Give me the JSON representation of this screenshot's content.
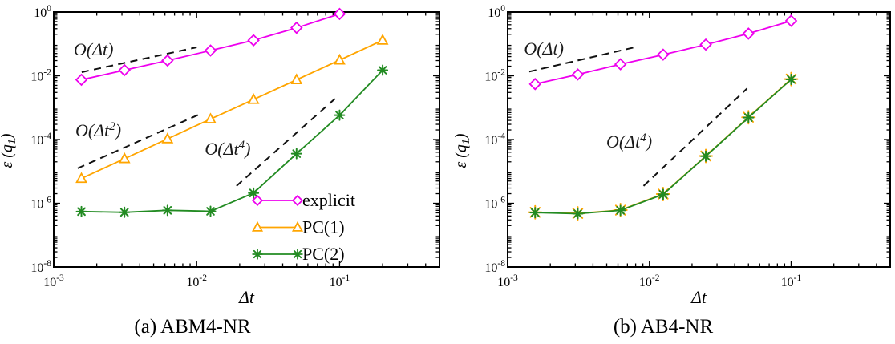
{
  "figure": {
    "background": "#ffffff",
    "captions": {
      "a": "(a) ABM4-NR",
      "b": "(b) AB4-NR"
    }
  },
  "chart_data": [
    {
      "id": "a",
      "type": "line",
      "caption": "(a) ABM4-NR",
      "xlabel": "Δt",
      "ylabel": {
        "pre": "ε (q",
        "sub": "1",
        "post": ")"
      },
      "xscale": "log",
      "yscale": "log",
      "xlim": [
        0.001,
        0.5
      ],
      "ylim": [
        1e-08,
        1
      ],
      "grid": false,
      "x_major_ticks": [
        0.001,
        0.01,
        0.1
      ],
      "x_tick_labels": [
        "10^-3",
        "10^-2",
        "10^-1"
      ],
      "y_major_ticks": [
        1,
        0.01,
        0.0001,
        1e-06,
        1e-08
      ],
      "y_tick_labels": [
        "10^0",
        "10^-2",
        "10^-4",
        "10^-6",
        "10^-8"
      ],
      "series": [
        {
          "name": "explicit",
          "color": "#ee00ee",
          "marker": "diamond",
          "msize": 6.5,
          "x": [
            0.0015625,
            0.003125,
            0.00625,
            0.0125,
            0.025,
            0.05,
            0.1
          ],
          "y": [
            0.0075,
            0.015,
            0.03,
            0.062,
            0.13,
            0.32,
            0.87
          ]
        },
        {
          "name": "PC(1)",
          "color": "#ffa500",
          "marker": "triangle",
          "msize": 6.2,
          "x": [
            0.0015625,
            0.003125,
            0.00625,
            0.0125,
            0.025,
            0.05,
            0.1,
            0.2
          ],
          "y": [
            6e-06,
            2.5e-05,
            0.000105,
            0.00044,
            0.0018,
            0.0075,
            0.031,
            0.13
          ]
        },
        {
          "name": "PC(2)",
          "color": "#228b22",
          "marker": "star",
          "msize": 6,
          "x": [
            0.0015625,
            0.003125,
            0.00625,
            0.0125,
            0.025,
            0.05,
            0.1,
            0.2
          ],
          "y": [
            5.5e-07,
            5.2e-07,
            6e-07,
            5.6e-07,
            2.1e-06,
            3.6e-05,
            0.00058,
            0.015
          ]
        }
      ],
      "reference_lines": [
        {
          "label": {
            "pre": "O(Δt",
            "sup": "",
            "post": ")"
          },
          "x": [
            0.00157,
            0.01
          ],
          "y": [
            0.013,
            0.078
          ],
          "label_at": [
            0.0019,
            0.066
          ]
        },
        {
          "label": {
            "pre": "O(Δt",
            "sup": "2",
            "post": ")"
          },
          "x": [
            0.00147,
            0.0103
          ],
          "y": [
            1.25e-05,
            0.0006
          ],
          "label_at": [
            0.00205,
            0.00019
          ]
        },
        {
          "label": {
            "pre": "O(Δt",
            "sup": "4",
            "post": ")"
          },
          "x": [
            0.019,
            0.094
          ],
          "y": [
            3.5e-06,
            0.002
          ],
          "label_at": [
            0.0165,
            5e-05
          ]
        }
      ],
      "legend": {
        "visible": true,
        "entries": [
          "explicit",
          "PC(1)",
          "PC(2)"
        ]
      }
    },
    {
      "id": "b",
      "type": "line",
      "caption": "(b) AB4-NR",
      "xlabel": "Δt",
      "ylabel": {
        "pre": "ε (q",
        "sub": "1",
        "post": ")"
      },
      "xscale": "log",
      "yscale": "log",
      "xlim": [
        0.001,
        0.5
      ],
      "ylim": [
        1e-08,
        1
      ],
      "grid": false,
      "x_major_ticks": [
        0.001,
        0.01,
        0.1
      ],
      "x_tick_labels": [
        "10^-3",
        "10^-2",
        "10^-1"
      ],
      "y_major_ticks": [
        1,
        0.01,
        0.0001,
        1e-06,
        1e-08
      ],
      "y_tick_labels": [
        "10^0",
        "10^-2",
        "10^-4",
        "10^-6",
        "10^-8"
      ],
      "series": [
        {
          "name": "explicit",
          "color": "#ee00ee",
          "marker": "diamond",
          "msize": 6.5,
          "x": [
            0.0015625,
            0.003125,
            0.00625,
            0.0125,
            0.025,
            0.05,
            0.1
          ],
          "y": [
            0.0055,
            0.011,
            0.023,
            0.046,
            0.095,
            0.21,
            0.53
          ]
        },
        {
          "name": "PC(1)",
          "color": "#ffa500",
          "marker": "star",
          "msize": 8,
          "x": [
            0.0015625,
            0.003125,
            0.00625,
            0.0125,
            0.025,
            0.05,
            0.1
          ],
          "y": [
            5.2e-07,
            4.8e-07,
            6.1e-07,
            1.95e-06,
            3.05e-05,
            0.0005,
            0.0079
          ]
        },
        {
          "name": "PC(2)",
          "color": "#228b22",
          "marker": "star",
          "msize": 6,
          "x": [
            0.0015625,
            0.003125,
            0.00625,
            0.0125,
            0.025,
            0.05,
            0.1
          ],
          "y": [
            5.1e-07,
            4.7e-07,
            6e-07,
            1.9e-06,
            3e-05,
            0.00049,
            0.0077
          ]
        }
      ],
      "reference_lines": [
        {
          "label": {
            "pre": "O(Δt",
            "sup": "",
            "post": ")"
          },
          "x": [
            0.00142,
            0.0082
          ],
          "y": [
            0.0135,
            0.0815
          ],
          "label_at": [
            0.0018,
            0.069
          ]
        },
        {
          "label": {
            "pre": "O(Δt",
            "sup": "4",
            "post": ")"
          },
          "x": [
            0.0091,
            0.0489
          ],
          "y": [
            3.5e-06,
            0.004
          ],
          "label_at": [
            0.0072,
            8.4e-05
          ]
        }
      ],
      "legend": {
        "visible": false,
        "entries": []
      }
    }
  ]
}
